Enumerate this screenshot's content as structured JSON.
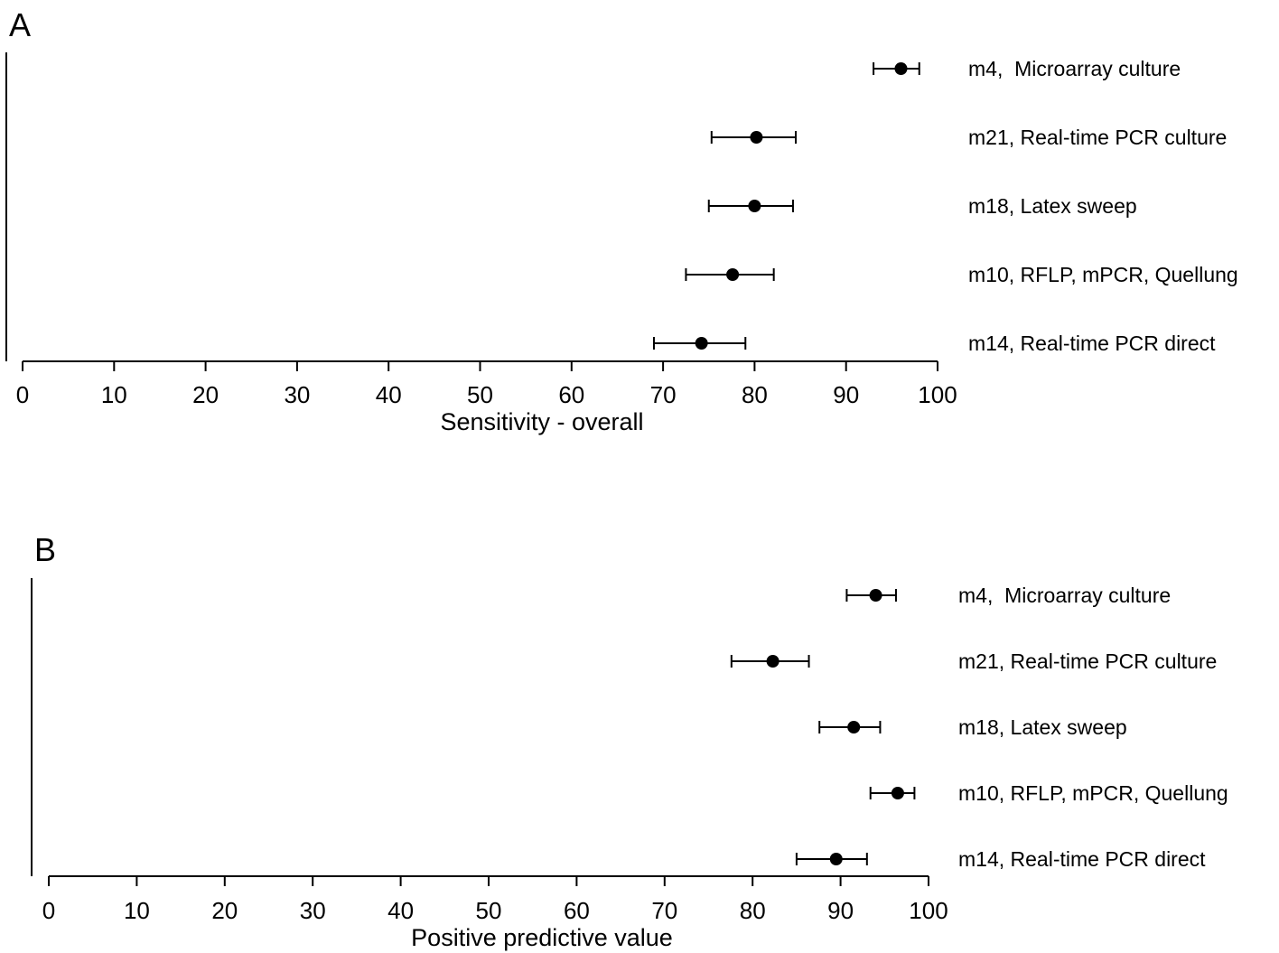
{
  "chart_data": [
    {
      "type": "forest",
      "panel_label": "A",
      "xlabel": "Sensitivity - overall",
      "xlim": [
        0,
        100
      ],
      "xticks": [
        0,
        10,
        20,
        30,
        40,
        50,
        60,
        70,
        80,
        90,
        100
      ],
      "series": [
        {
          "label": "m4,  Microarray culture",
          "value": 96.0,
          "ci_low": 93.0,
          "ci_high": 98.0
        },
        {
          "label": "m21, Real-time PCR culture",
          "value": 80.2,
          "ci_low": 75.3,
          "ci_high": 84.5
        },
        {
          "label": "m18, Latex sweep",
          "value": 80.0,
          "ci_low": 75.0,
          "ci_high": 84.2
        },
        {
          "label": "m10, RFLP, mPCR, Quellung",
          "value": 77.6,
          "ci_low": 72.5,
          "ci_high": 82.1
        },
        {
          "label": "m14, Real-time PCR direct",
          "value": 74.2,
          "ci_low": 69.0,
          "ci_high": 79.0
        }
      ]
    },
    {
      "type": "forest",
      "panel_label": "B",
      "xlabel": "Positive predictive value",
      "xlim": [
        0,
        100
      ],
      "xticks": [
        0,
        10,
        20,
        30,
        40,
        50,
        60,
        70,
        80,
        90,
        100
      ],
      "series": [
        {
          "label": "m4,  Microarray culture",
          "value": 94.0,
          "ci_low": 90.7,
          "ci_high": 96.3
        },
        {
          "label": "m21, Real-time PCR culture",
          "value": 82.3,
          "ci_low": 77.6,
          "ci_high": 86.4
        },
        {
          "label": "m18, Latex sweep",
          "value": 91.5,
          "ci_low": 87.6,
          "ci_high": 94.5
        },
        {
          "label": "m10, RFLP, mPCR, Quellung",
          "value": 96.5,
          "ci_low": 93.4,
          "ci_high": 98.4
        },
        {
          "label": "m14, Real-time PCR direct",
          "value": 89.5,
          "ci_low": 85.0,
          "ci_high": 93.0
        }
      ]
    }
  ]
}
